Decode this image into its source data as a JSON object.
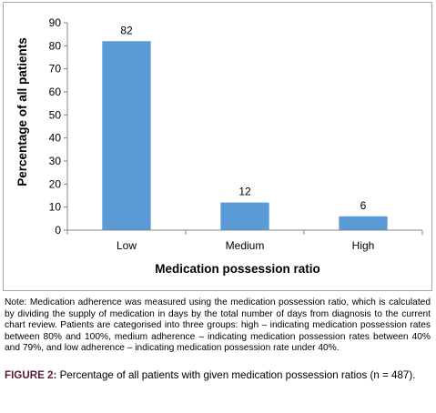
{
  "chart_data": {
    "type": "bar",
    "categories": [
      "Low",
      "Medium",
      "High"
    ],
    "values": [
      82,
      12,
      6
    ],
    "data_labels": [
      "82",
      "12",
      "6"
    ],
    "xlabel": "Medication possession ratio",
    "ylabel": "Percentage of all patients",
    "ylim": [
      0,
      90
    ],
    "yticks": [
      "0",
      "10",
      "20",
      "30",
      "40",
      "50",
      "60",
      "70",
      "80",
      "90"
    ],
    "grid": false,
    "legend": "none",
    "bar_color": "#5b9bd5"
  },
  "note": "Note: Medication adherence was measured using the medication possession ratio, which is calculated by dividing the supply of medication in days by the total number of days from diagnosis to the current chart review. Patients are categorised into three groups: high – indicating medication possession rates between 80% and 100%, medium adherence – indicating medication possession rates between 40% and 79%, and low adherence – indicating medication possession rate under 40%.",
  "caption": {
    "label": "FIGURE 2:",
    "text": " Percentage of all patients with given medication possession ratios (n = 487)."
  }
}
